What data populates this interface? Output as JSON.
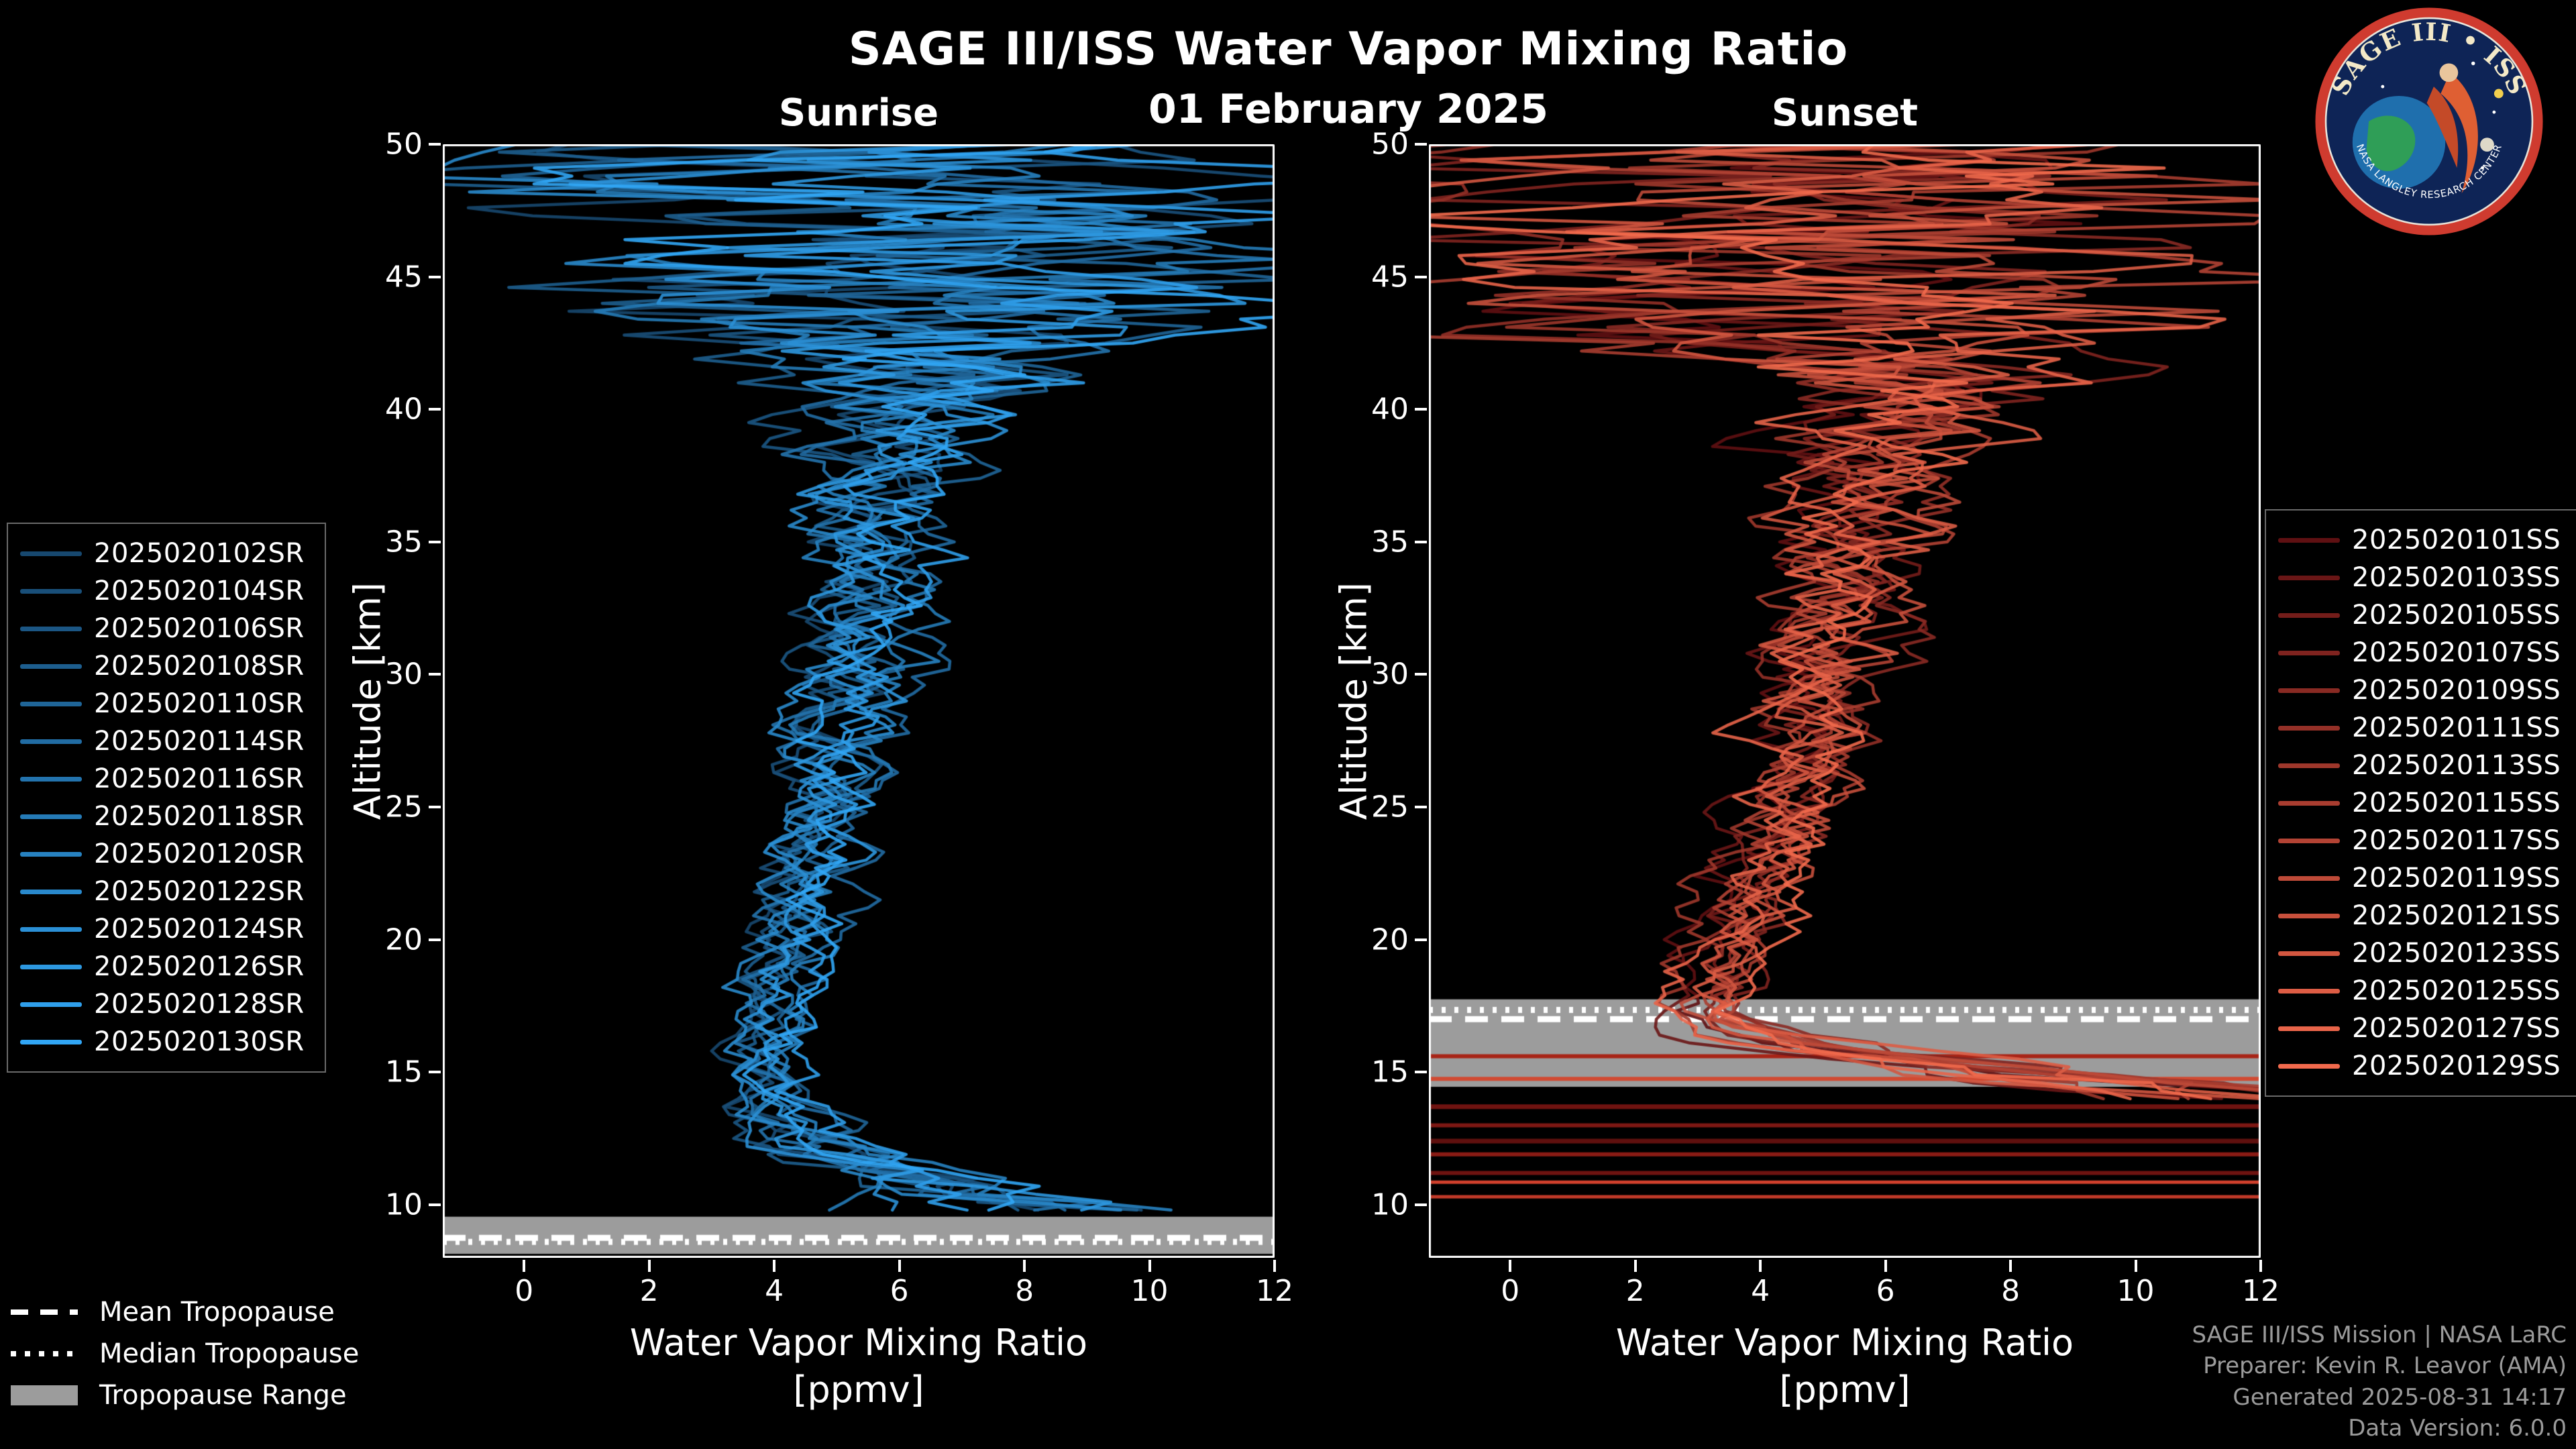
{
  "header": {
    "title": "SAGE III/ISS Water Vapor Mixing Ratio",
    "date": "01 February 2025"
  },
  "colors": {
    "background": "#000000",
    "text": "#ffffff",
    "footer_text": "#9b9b9b",
    "tropopause_band": "#9c9c9c",
    "axis_frame": "#ffffff"
  },
  "chart_data": [
    {
      "id": "sunrise",
      "type": "line",
      "title": "Sunrise",
      "xlabel": "Water Vapor Mixing Ratio",
      "xlabel_units": "[ppmv]",
      "ylabel": "Altitude [km]",
      "xlim": [
        -1.3,
        12
      ],
      "ylim": [
        8,
        50
      ],
      "xticks": [
        0,
        2,
        4,
        6,
        8,
        10,
        12
      ],
      "yticks": [
        10,
        15,
        20,
        25,
        30,
        35,
        40,
        45,
        50
      ],
      "grid": false,
      "legend_position": "outside-left",
      "line_color_start": "#17486f",
      "line_color_end": "#31a6f5",
      "series": [
        "2025020102SR",
        "2025020104SR",
        "2025020106SR",
        "2025020108SR",
        "2025020110SR",
        "2025020114SR",
        "2025020116SR",
        "2025020118SR",
        "2025020120SR",
        "2025020122SR",
        "2025020124SR",
        "2025020126SR",
        "2025020128SR",
        "2025020130SR"
      ],
      "mean_profile": {
        "altitude_km": [
          9.7,
          10.5,
          11,
          12,
          13,
          14,
          16,
          18,
          20,
          25,
          30,
          35,
          40,
          44,
          50
        ],
        "ppmv": [
          9.2,
          7.2,
          6.2,
          5.0,
          4.4,
          4.1,
          3.9,
          4.15,
          4.5,
          5.0,
          5.35,
          5.8,
          6.1,
          5.9,
          5.5
        ]
      },
      "spread_profile": {
        "altitude_km": [
          9.7,
          10.5,
          12,
          14,
          18,
          25,
          32,
          38,
          40,
          42,
          44,
          50
        ],
        "sigma_ppmv": [
          2.4,
          2.0,
          1.0,
          0.55,
          0.5,
          0.65,
          0.8,
          1.1,
          1.6,
          3.2,
          5.5,
          6.0
        ]
      },
      "profile_bottom_km": 9.7,
      "tropopause": {
        "mean_km": 8.75,
        "median_km": 8.6,
        "range_km": [
          8.15,
          9.55
        ]
      },
      "artifact_lines": []
    },
    {
      "id": "sunset",
      "type": "line",
      "title": "Sunset",
      "xlabel": "Water Vapor Mixing Ratio",
      "xlabel_units": "[ppmv]",
      "ylabel": "Altitude [km]",
      "xlim": [
        -1.3,
        12
      ],
      "ylim": [
        8,
        50
      ],
      "xticks": [
        0,
        2,
        4,
        6,
        8,
        10,
        12
      ],
      "yticks": [
        10,
        15,
        20,
        25,
        30,
        35,
        40,
        45,
        50
      ],
      "grid": false,
      "legend_position": "outside-right",
      "line_color_start": "#5f1012",
      "line_color_end": "#f26a4d",
      "series": [
        "2025020101SS",
        "2025020103SS",
        "2025020105SS",
        "2025020107SS",
        "2025020109SS",
        "2025020111SS",
        "2025020113SS",
        "2025020115SS",
        "2025020117SS",
        "2025020119SS",
        "2025020121SS",
        "2025020123SS",
        "2025020125SS",
        "2025020127SS",
        "2025020129SS"
      ],
      "mean_profile": {
        "altitude_km": [
          13.8,
          14.5,
          15,
          15.8,
          16.5,
          17.2,
          18,
          20,
          25,
          30,
          35,
          40,
          44,
          50
        ],
        "ppmv": [
          12.8,
          10.0,
          7.6,
          5.2,
          3.6,
          2.85,
          3.0,
          3.5,
          4.3,
          5.0,
          5.5,
          5.95,
          5.9,
          5.5
        ]
      },
      "spread_profile": {
        "altitude_km": [
          13.8,
          14.5,
          15.5,
          16.5,
          17.2,
          18,
          20,
          25,
          32,
          38,
          40,
          42,
          44,
          50
        ],
        "sigma_ppmv": [
          2.2,
          1.8,
          1.2,
          0.7,
          0.45,
          0.5,
          0.55,
          0.7,
          0.9,
          1.2,
          1.7,
          3.4,
          5.5,
          6.0
        ]
      },
      "profile_bottom_km": 13.8,
      "tropopause": {
        "mean_km": 17.0,
        "median_km": 17.35,
        "range_km": [
          14.45,
          17.75
        ]
      },
      "artifact_lines": [
        {
          "altitude_km": 15.6,
          "color": "#a82417",
          "width": 6
        },
        {
          "altitude_km": 14.75,
          "color": "#d14a32",
          "width": 6
        },
        {
          "altitude_km": 13.7,
          "color": "#6f1310",
          "width": 7
        },
        {
          "altitude_km": 13.0,
          "color": "#7d1713",
          "width": 6
        },
        {
          "altitude_km": 12.4,
          "color": "#5f100e",
          "width": 7
        },
        {
          "altitude_km": 11.9,
          "color": "#8a1b14",
          "width": 6
        },
        {
          "altitude_km": 11.2,
          "color": "#6f1310",
          "width": 6
        },
        {
          "altitude_km": 10.85,
          "color": "#d0402c",
          "width": 5
        },
        {
          "altitude_km": 10.3,
          "color": "#c23a28",
          "width": 5
        }
      ]
    }
  ],
  "trop_legend": {
    "mean_label": "Mean Tropopause",
    "median_label": "Median Tropopause",
    "range_label": "Tropopause Range"
  },
  "footer": {
    "lines": [
      "SAGE III/ISS Mission | NASA LaRC",
      "Preparer: Kevin R. Leavor (AMA)",
      "Generated 2025-08-31 14:17",
      "Data Version: 6.0.0"
    ]
  },
  "logo": {
    "title": "SAGE III • ISS",
    "ring_text": "NASA LANGLEY RESEARCH CENTER"
  }
}
